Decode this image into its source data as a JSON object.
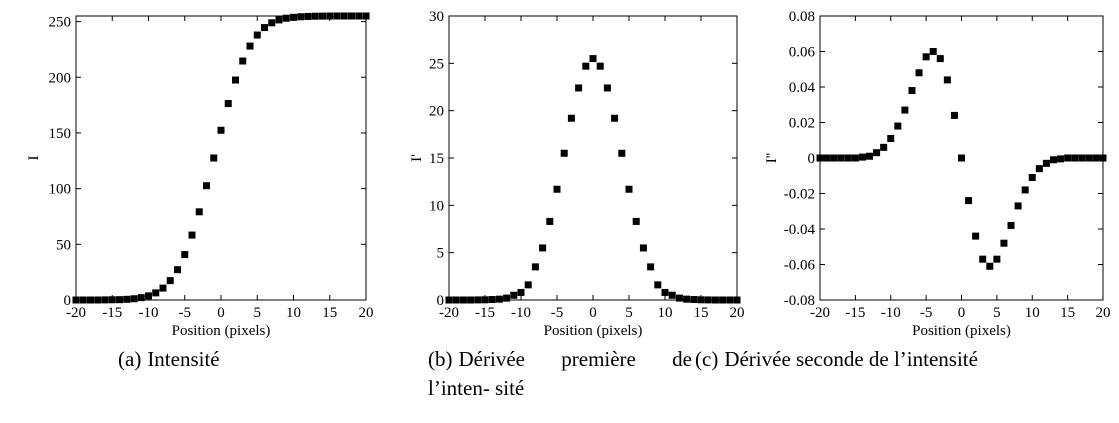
{
  "captions": [
    {
      "tag": "(a)",
      "text": "Intensité"
    },
    {
      "tag": "(b)",
      "text": "Dérivée première de l’inten- sité"
    },
    {
      "tag": "(c)",
      "text": "Dérivée seconde de l’intensité"
    }
  ],
  "chart_data": [
    {
      "type": "scatter",
      "title": "",
      "xlabel": "Position (pixels)",
      "ylabel": "I",
      "xlim": [
        -20,
        20
      ],
      "ylim": [
        0,
        255
      ],
      "xticks": [
        "-20",
        "-15",
        "-10",
        "-5",
        "0",
        "5",
        "10",
        "15",
        "20"
      ],
      "yticks": [
        "0",
        "50",
        "100",
        "150",
        "200",
        "250"
      ],
      "series": [
        {
          "x": [
            -20,
            -19,
            -18,
            -17,
            -16,
            -15,
            -14,
            -13,
            -12,
            -11,
            -10,
            -9,
            -8,
            -7,
            -6,
            -5,
            -4,
            -3,
            -2,
            -1,
            0,
            1,
            2,
            3,
            4,
            5,
            6,
            7,
            8,
            9,
            10,
            11,
            12,
            13,
            14,
            15,
            16,
            17,
            18,
            19,
            20
          ],
          "y": [
            0.0,
            0.0,
            0.0,
            0.0,
            0.1,
            0.2,
            0.3,
            0.6,
            1.1,
            2.1,
            3.7,
            6.4,
            10.7,
            17.4,
            27.2,
            40.8,
            58.3,
            79.2,
            102.6,
            127.5,
            152.4,
            176.4,
            197.5,
            214.6,
            228.0,
            237.9,
            244.6,
            248.9,
            251.5,
            253.0,
            253.8,
            254.3,
            254.6,
            254.8,
            254.9,
            254.95,
            255.0,
            255.0,
            255.0,
            255.0,
            255.0
          ]
        }
      ]
    },
    {
      "type": "scatter",
      "title": "",
      "xlabel": "Position (pixels)",
      "ylabel": "I'",
      "xlim": [
        -20,
        20
      ],
      "ylim": [
        0,
        30
      ],
      "xticks": [
        "-20",
        "-15",
        "-10",
        "-5",
        "0",
        "5",
        "10",
        "15",
        "20"
      ],
      "yticks": [
        "0",
        "5",
        "10",
        "15",
        "20",
        "25",
        "30"
      ],
      "series": [
        {
          "x": [
            -20,
            -19,
            -18,
            -17,
            -16,
            -15,
            -14,
            -13,
            -12,
            -11,
            -10,
            -9,
            -8,
            -7,
            -6,
            -5,
            -4,
            -3,
            -2,
            -1,
            0,
            1,
            2,
            3,
            4,
            5,
            6,
            7,
            8,
            9,
            10,
            11,
            12,
            13,
            14,
            15,
            16,
            17,
            18,
            19,
            20
          ],
          "y": [
            0.0,
            0.0,
            0.0,
            0.0,
            0.01,
            0.02,
            0.05,
            0.09,
            0.2,
            0.5,
            0.8,
            1.6,
            3.5,
            5.5,
            8.3,
            11.7,
            15.5,
            19.2,
            22.4,
            24.7,
            25.5,
            24.7,
            22.4,
            19.2,
            15.5,
            11.7,
            8.3,
            5.5,
            3.5,
            1.6,
            0.8,
            0.5,
            0.2,
            0.09,
            0.05,
            0.02,
            0.01,
            0.0,
            0.0,
            0.0,
            0.0
          ]
        }
      ]
    },
    {
      "type": "scatter",
      "title": "",
      "xlabel": "Position (pixels)",
      "ylabel": "I''",
      "xlim": [
        -20,
        20
      ],
      "ylim": [
        -0.08,
        0.08
      ],
      "xticks": [
        "-20",
        "-15",
        "-10",
        "-5",
        "0",
        "5",
        "10",
        "15",
        "20"
      ],
      "yticks": [
        "-0.08",
        "-0.06",
        "-0.04",
        "-0.02",
        "0",
        "0.02",
        "0.04",
        "0.06",
        "0.08"
      ],
      "series": [
        {
          "x": [
            -20,
            -19,
            -18,
            -17,
            -16,
            -15,
            -14,
            -13,
            -12,
            -11,
            -10,
            -9,
            -8,
            -7,
            -6,
            -5,
            -4,
            -3,
            -2,
            -1,
            0,
            1,
            2,
            3,
            4,
            5,
            6,
            7,
            8,
            9,
            10,
            11,
            12,
            13,
            14,
            15,
            16,
            17,
            18,
            19,
            20
          ],
          "y": [
            0.0,
            0.0,
            0.0,
            0.0,
            0.0,
            0.0,
            0.0005,
            0.001,
            0.003,
            0.006,
            0.011,
            0.018,
            0.027,
            0.038,
            0.048,
            0.057,
            0.06,
            0.056,
            0.044,
            0.024,
            0.0,
            -0.024,
            -0.044,
            -0.057,
            -0.061,
            -0.057,
            -0.048,
            -0.038,
            -0.027,
            -0.018,
            -0.011,
            -0.006,
            -0.003,
            -0.001,
            -0.0005,
            0.0,
            0.0,
            0.0,
            0.0,
            0.0,
            0.0
          ]
        }
      ]
    }
  ]
}
